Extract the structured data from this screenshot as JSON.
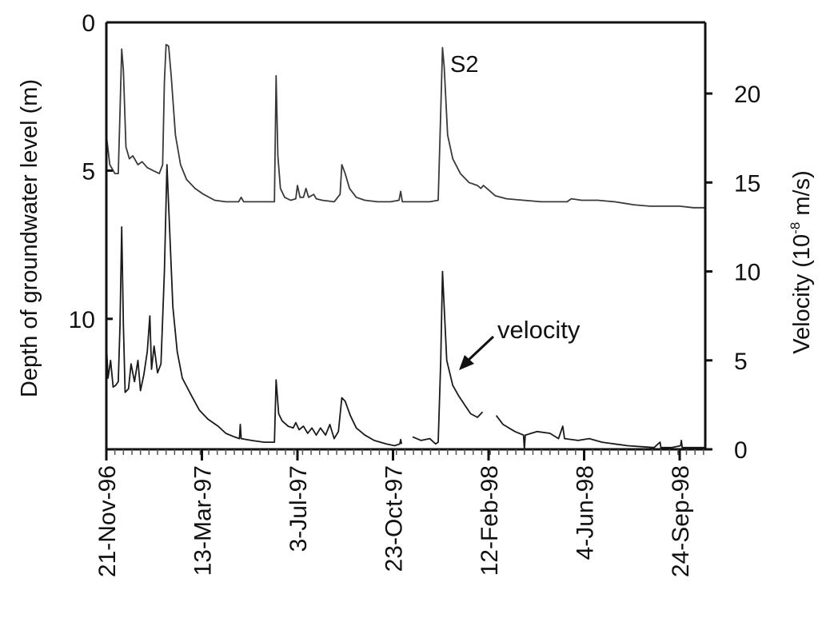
{
  "chart_data": {
    "type": "line",
    "x_axis": {
      "tick_labels": [
        "21-Nov-96",
        "13-Mar-97",
        "3-Jul-97",
        "23-Oct-97",
        "12-Feb-98",
        "4-Jun-98",
        "24-Sep-98"
      ],
      "range": [
        "1996-11-21",
        "1998-10-24"
      ]
    },
    "y_left": {
      "label": "Depth of groundwater level (m)",
      "range": [
        0,
        14.4
      ],
      "inverted": true,
      "tick_labels": [
        "0",
        "5",
        "10"
      ]
    },
    "y_right": {
      "label_prefix": "Velocity (10",
      "label_exponent": "-8",
      "label_suffix": " m/s)",
      "range": [
        0,
        24
      ],
      "tick_labels": [
        "0",
        "5",
        "10",
        "15",
        "20"
      ]
    },
    "annotations": {
      "groundwater_label": "S2",
      "velocity_label": "velocity"
    },
    "series": [
      {
        "axis": "left",
        "color": "#3a3a3a",
        "points": [
          [
            "1996-11-21",
            3.8
          ],
          [
            "1996-11-25",
            4.8
          ],
          [
            "1996-12-01",
            5.1
          ],
          [
            "1996-12-05",
            5.1
          ],
          [
            "1996-12-07",
            3.0
          ],
          [
            "1996-12-09",
            0.9
          ],
          [
            "1996-12-11",
            1.6
          ],
          [
            "1996-12-14",
            4.2
          ],
          [
            "1996-12-18",
            4.6
          ],
          [
            "1996-12-22",
            4.5
          ],
          [
            "1996-12-28",
            4.8
          ],
          [
            "1997-01-02",
            4.7
          ],
          [
            "1997-01-08",
            4.9
          ],
          [
            "1997-01-15",
            5.0
          ],
          [
            "1997-01-22",
            5.1
          ],
          [
            "1997-01-26",
            4.8
          ],
          [
            "1997-01-28",
            2.0
          ],
          [
            "1997-01-30",
            0.75
          ],
          [
            "1997-02-02",
            0.8
          ],
          [
            "1997-02-05",
            1.8
          ],
          [
            "1997-02-10",
            3.8
          ],
          [
            "1997-02-16",
            4.8
          ],
          [
            "1997-02-23",
            5.3
          ],
          [
            "1997-03-05",
            5.6
          ],
          [
            "1997-03-15",
            5.8
          ],
          [
            "1997-03-28",
            6.0
          ],
          [
            "1997-04-10",
            6.05
          ],
          [
            "1997-04-25",
            6.05
          ],
          [
            "1997-04-28",
            5.9
          ],
          [
            "1997-05-01",
            6.05
          ],
          [
            "1997-05-20",
            6.05
          ],
          [
            "1997-06-06",
            6.05
          ],
          [
            "1997-06-08",
            1.8
          ],
          [
            "1997-06-10",
            4.5
          ],
          [
            "1997-06-13",
            5.6
          ],
          [
            "1997-06-18",
            5.9
          ],
          [
            "1997-06-25",
            6.0
          ],
          [
            "1997-07-01",
            5.95
          ],
          [
            "1997-07-03",
            5.5
          ],
          [
            "1997-07-06",
            5.9
          ],
          [
            "1997-07-10",
            5.9
          ],
          [
            "1997-07-13",
            5.6
          ],
          [
            "1997-07-16",
            5.9
          ],
          [
            "1997-07-22",
            5.8
          ],
          [
            "1997-07-25",
            5.95
          ],
          [
            "1997-08-01",
            6.0
          ],
          [
            "1997-08-15",
            6.05
          ],
          [
            "1997-08-22",
            5.8
          ],
          [
            "1997-08-24",
            4.8
          ],
          [
            "1997-08-28",
            5.1
          ],
          [
            "1997-09-02",
            5.6
          ],
          [
            "1997-09-10",
            5.9
          ],
          [
            "1997-09-20",
            6.0
          ],
          [
            "1997-10-05",
            6.05
          ],
          [
            "1997-10-20",
            6.05
          ],
          [
            "1997-10-30",
            6.0
          ],
          [
            "1997-11-01",
            5.7
          ],
          [
            "1997-11-03",
            6.05
          ],
          [
            "1997-11-20",
            6.05
          ],
          [
            "1997-12-05",
            6.05
          ],
          [
            "1997-12-15",
            6.0
          ],
          [
            "1997-12-18",
            3.0
          ],
          [
            "1997-12-20",
            0.85
          ],
          [
            "1997-12-22",
            1.5
          ],
          [
            "1997-12-26",
            3.8
          ],
          [
            "1998-01-01",
            4.6
          ],
          [
            "1998-01-10",
            5.1
          ],
          [
            "1998-01-20",
            5.4
          ],
          [
            "1998-01-30",
            5.5
          ],
          [
            "1998-02-03",
            5.6
          ],
          [
            "1998-02-06",
            5.5
          ],
          [
            "1998-02-10",
            5.6
          ],
          [
            "1998-02-20",
            5.85
          ],
          [
            "1998-03-05",
            5.95
          ],
          [
            "1998-03-25",
            6.0
          ],
          [
            "1998-04-15",
            6.05
          ],
          [
            "1998-05-01",
            6.05
          ],
          [
            "1998-05-15",
            6.05
          ],
          [
            "1998-05-20",
            5.95
          ],
          [
            "1998-06-01",
            6.0
          ],
          [
            "1998-06-20",
            6.0
          ],
          [
            "1998-07-10",
            6.05
          ],
          [
            "1998-08-01",
            6.15
          ],
          [
            "1998-08-20",
            6.2
          ],
          [
            "1998-09-10",
            6.2
          ],
          [
            "1998-09-24",
            6.2
          ],
          [
            "1998-10-10",
            6.25
          ],
          [
            "1998-10-24",
            6.25
          ]
        ]
      },
      {
        "axis": "right",
        "color": "#1a1a1a",
        "points": [
          [
            "1996-11-21",
            6.0
          ],
          [
            "1996-11-23",
            4.0
          ],
          [
            "1996-11-26",
            5.0
          ],
          [
            "1996-11-29",
            3.5
          ],
          [
            "1996-12-02",
            3.6
          ],
          [
            "1996-12-05",
            3.8
          ],
          [
            "1996-12-07",
            7.0
          ],
          [
            "1996-12-09",
            12.5
          ],
          [
            "1996-12-11",
            7.0
          ],
          [
            "1996-12-13",
            3.2
          ],
          [
            "1996-12-17",
            3.4
          ],
          [
            "1996-12-20",
            4.8
          ],
          [
            "1996-12-24",
            3.8
          ],
          [
            "1996-12-28",
            5.0
          ],
          [
            "1996-12-31",
            3.3
          ],
          [
            "1997-01-04",
            4.2
          ],
          [
            "1997-01-08",
            5.5
          ],
          [
            "1997-01-11",
            7.5
          ],
          [
            "1997-01-13",
            4.5
          ],
          [
            "1997-01-16",
            5.8
          ],
          [
            "1997-01-20",
            4.3
          ],
          [
            "1997-01-24",
            4.8
          ],
          [
            "1997-01-28",
            10.0
          ],
          [
            "1997-01-31",
            16.0
          ],
          [
            "1997-02-03",
            12.5
          ],
          [
            "1997-02-07",
            8.0
          ],
          [
            "1997-02-12",
            5.5
          ],
          [
            "1997-02-18",
            4.0
          ],
          [
            "1997-03-01",
            3.0
          ],
          [
            "1997-03-10",
            2.2
          ],
          [
            "1997-03-20",
            1.7
          ],
          [
            "1997-04-01",
            1.3
          ],
          [
            "1997-04-10",
            0.9
          ],
          [
            "1997-04-20",
            0.7
          ],
          [
            "1997-04-26",
            0.6
          ],
          [
            "1997-04-27",
            1.4
          ],
          [
            "1997-04-28",
            0.6
          ],
          [
            "1997-05-10",
            0.5
          ],
          [
            "1997-05-25",
            0.4
          ],
          [
            "1997-06-06",
            0.4
          ],
          [
            "1997-06-08",
            3.9
          ],
          [
            "1997-06-11",
            2.0
          ],
          [
            "1997-06-15",
            1.6
          ],
          [
            "1997-06-22",
            1.3
          ],
          [
            "1997-06-28",
            1.2
          ],
          [
            "1997-07-01",
            1.5
          ],
          [
            "1997-07-05",
            1.1
          ],
          [
            "1997-07-10",
            1.3
          ],
          [
            "1997-07-15",
            0.9
          ],
          [
            "1997-07-20",
            1.2
          ],
          [
            "1997-07-25",
            0.8
          ],
          [
            "1997-07-30",
            1.2
          ],
          [
            "1997-08-05",
            0.8
          ],
          [
            "1997-08-10",
            1.4
          ],
          [
            "1997-08-15",
            0.6
          ],
          [
            "1997-08-20",
            1.0
          ],
          [
            "1997-08-24",
            2.9
          ],
          [
            "1997-08-28",
            2.7
          ],
          [
            "1997-09-03",
            1.9
          ],
          [
            "1997-09-10",
            1.2
          ],
          [
            "1997-09-20",
            0.8
          ],
          [
            "1997-10-01",
            0.5
          ],
          [
            "1997-10-15",
            0.3
          ],
          [
            "1997-10-25",
            0.2
          ],
          [
            "1997-10-31",
            0.3
          ],
          [
            "1997-11-01",
            0.55
          ],
          [
            "1997-11-02",
            0.3
          ],
          [
            null,
            null
          ],
          [
            "1997-11-15",
            0.7
          ],
          [
            "1997-11-25",
            0.5
          ],
          [
            "1997-12-05",
            0.6
          ],
          [
            "1997-12-12",
            0.3
          ],
          [
            "1997-12-15",
            0.4
          ],
          [
            "1997-12-18",
            5.0
          ],
          [
            "1997-12-20",
            10.0
          ],
          [
            "1997-12-22",
            8.0
          ],
          [
            "1997-12-25",
            5.0
          ],
          [
            "1998-01-01",
            3.6
          ],
          [
            "1998-01-08",
            3.0
          ],
          [
            "1998-01-15",
            2.5
          ],
          [
            "1998-01-22",
            2.0
          ],
          [
            "1998-01-30",
            1.8
          ],
          [
            "1998-02-05",
            2.1
          ],
          [
            null,
            null
          ],
          [
            "1998-02-21",
            1.9
          ],
          [
            "1998-03-01",
            1.4
          ],
          [
            "1998-03-15",
            1.0
          ],
          [
            "1998-03-25",
            0.8
          ],
          [
            "1998-03-26",
            0.0
          ],
          [
            "1998-03-27",
            0.8
          ],
          [
            "1998-04-10",
            1.0
          ],
          [
            "1998-04-25",
            0.9
          ],
          [
            "1998-05-05",
            0.6
          ],
          [
            "1998-05-10",
            1.3
          ],
          [
            "1998-05-12",
            0.6
          ],
          [
            "1998-05-28",
            0.5
          ],
          [
            "1998-06-10",
            0.6
          ],
          [
            "1998-06-25",
            0.4
          ],
          [
            "1998-07-10",
            0.3
          ],
          [
            "1998-07-25",
            0.2
          ],
          [
            "1998-08-10",
            0.15
          ],
          [
            "1998-08-25",
            0.1
          ],
          [
            "1998-09-01",
            0.4
          ],
          [
            "1998-09-02",
            0.1
          ],
          [
            "1998-09-15",
            0.1
          ],
          [
            "1998-09-25",
            0.2
          ],
          [
            "1998-09-26",
            0.5
          ],
          [
            "1998-09-27",
            0.1
          ],
          [
            "1998-10-10",
            0.1
          ],
          [
            "1998-10-24",
            0.1
          ]
        ]
      }
    ]
  }
}
